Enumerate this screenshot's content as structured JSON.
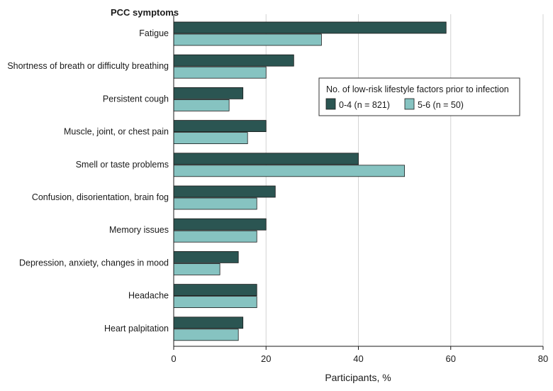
{
  "chart_data": {
    "type": "bar",
    "orientation": "horizontal",
    "y_title": "PCC symptoms",
    "xlabel": "Participants, %",
    "xlim": [
      0,
      80
    ],
    "xticks": [
      0,
      20,
      40,
      60,
      80
    ],
    "grid": "vertical",
    "categories": [
      "Fatigue",
      "Shortness of breath or difficulty breathing",
      "Persistent cough",
      "Muscle, joint, or chest pain",
      "Smell or taste problems",
      "Confusion, disorientation, brain fog",
      "Memory issues",
      "Depression, anxiety, changes in mood",
      "Headache",
      "Heart palpitation"
    ],
    "legend": {
      "title": "No. of low-risk lifestyle factors prior to infection",
      "placement": "upper-right"
    },
    "series": [
      {
        "name": "0-4 (n = 821)",
        "color": "#2b5552",
        "values": [
          59,
          26,
          15,
          20,
          40,
          22,
          20,
          14,
          18,
          15
        ]
      },
      {
        "name": "5-6 (n = 50)",
        "color": "#86c3c1",
        "values": [
          32,
          20,
          12,
          16,
          50,
          18,
          18,
          10,
          18,
          14
        ]
      }
    ]
  }
}
